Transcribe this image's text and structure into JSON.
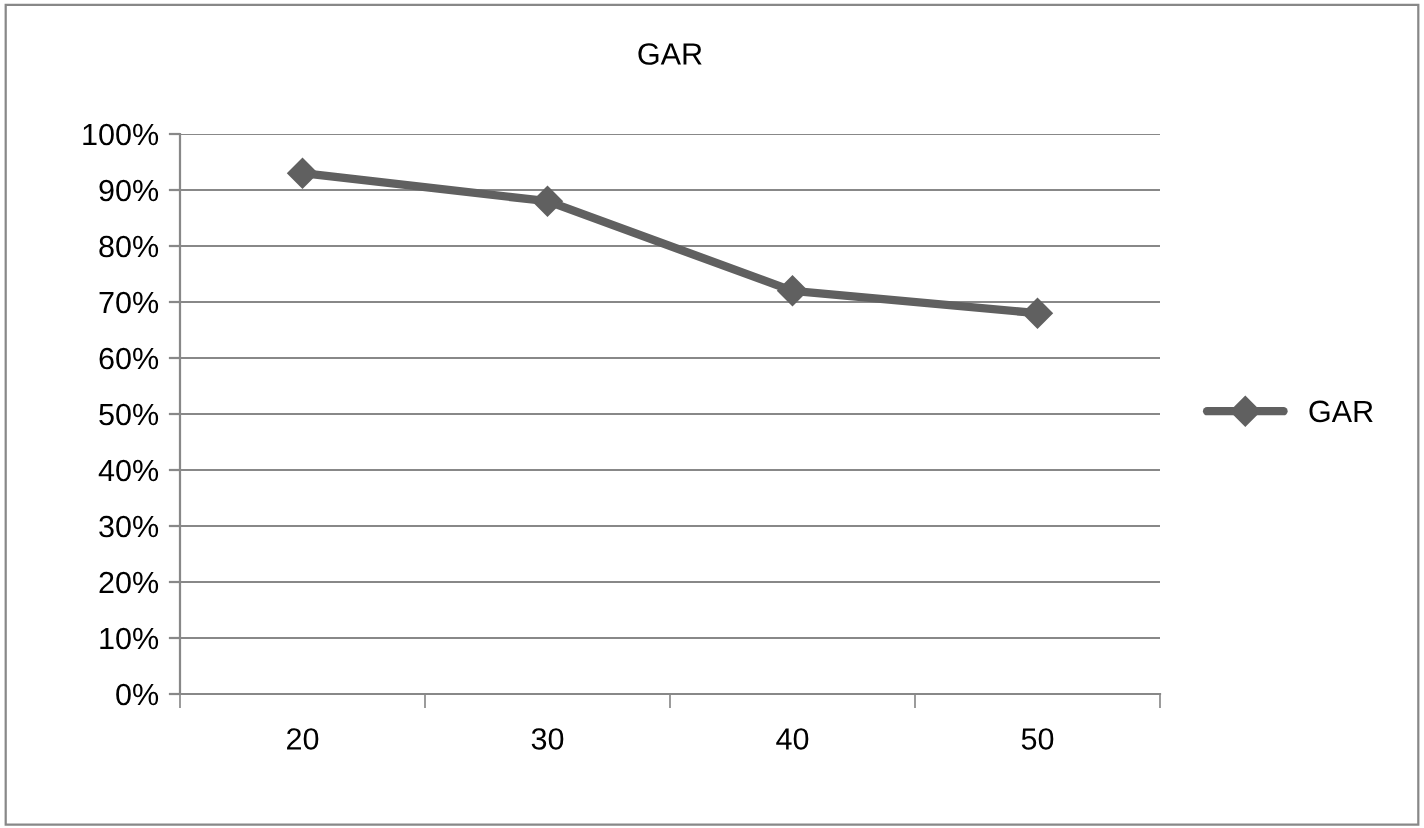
{
  "chart_data": {
    "type": "line",
    "title": "GAR",
    "categories": [
      "20",
      "30",
      "40",
      "50"
    ],
    "series": [
      {
        "name": "GAR",
        "color": "#606060",
        "values": [
          93,
          88,
          72,
          68
        ]
      }
    ],
    "ylim": [
      0,
      100
    ],
    "yticks": [
      {
        "value": 0,
        "label": "0%"
      },
      {
        "value": 10,
        "label": "10%"
      },
      {
        "value": 20,
        "label": "20%"
      },
      {
        "value": 30,
        "label": "30%"
      },
      {
        "value": 40,
        "label": "40%"
      },
      {
        "value": 50,
        "label": "50%"
      },
      {
        "value": 60,
        "label": "60%"
      },
      {
        "value": 70,
        "label": "70%"
      },
      {
        "value": 80,
        "label": "80%"
      },
      {
        "value": 90,
        "label": "90%"
      },
      {
        "value": 100,
        "label": "100%"
      }
    ],
    "grid": "y",
    "legend": "right",
    "marker": "diamond",
    "line_style": "solid"
  }
}
